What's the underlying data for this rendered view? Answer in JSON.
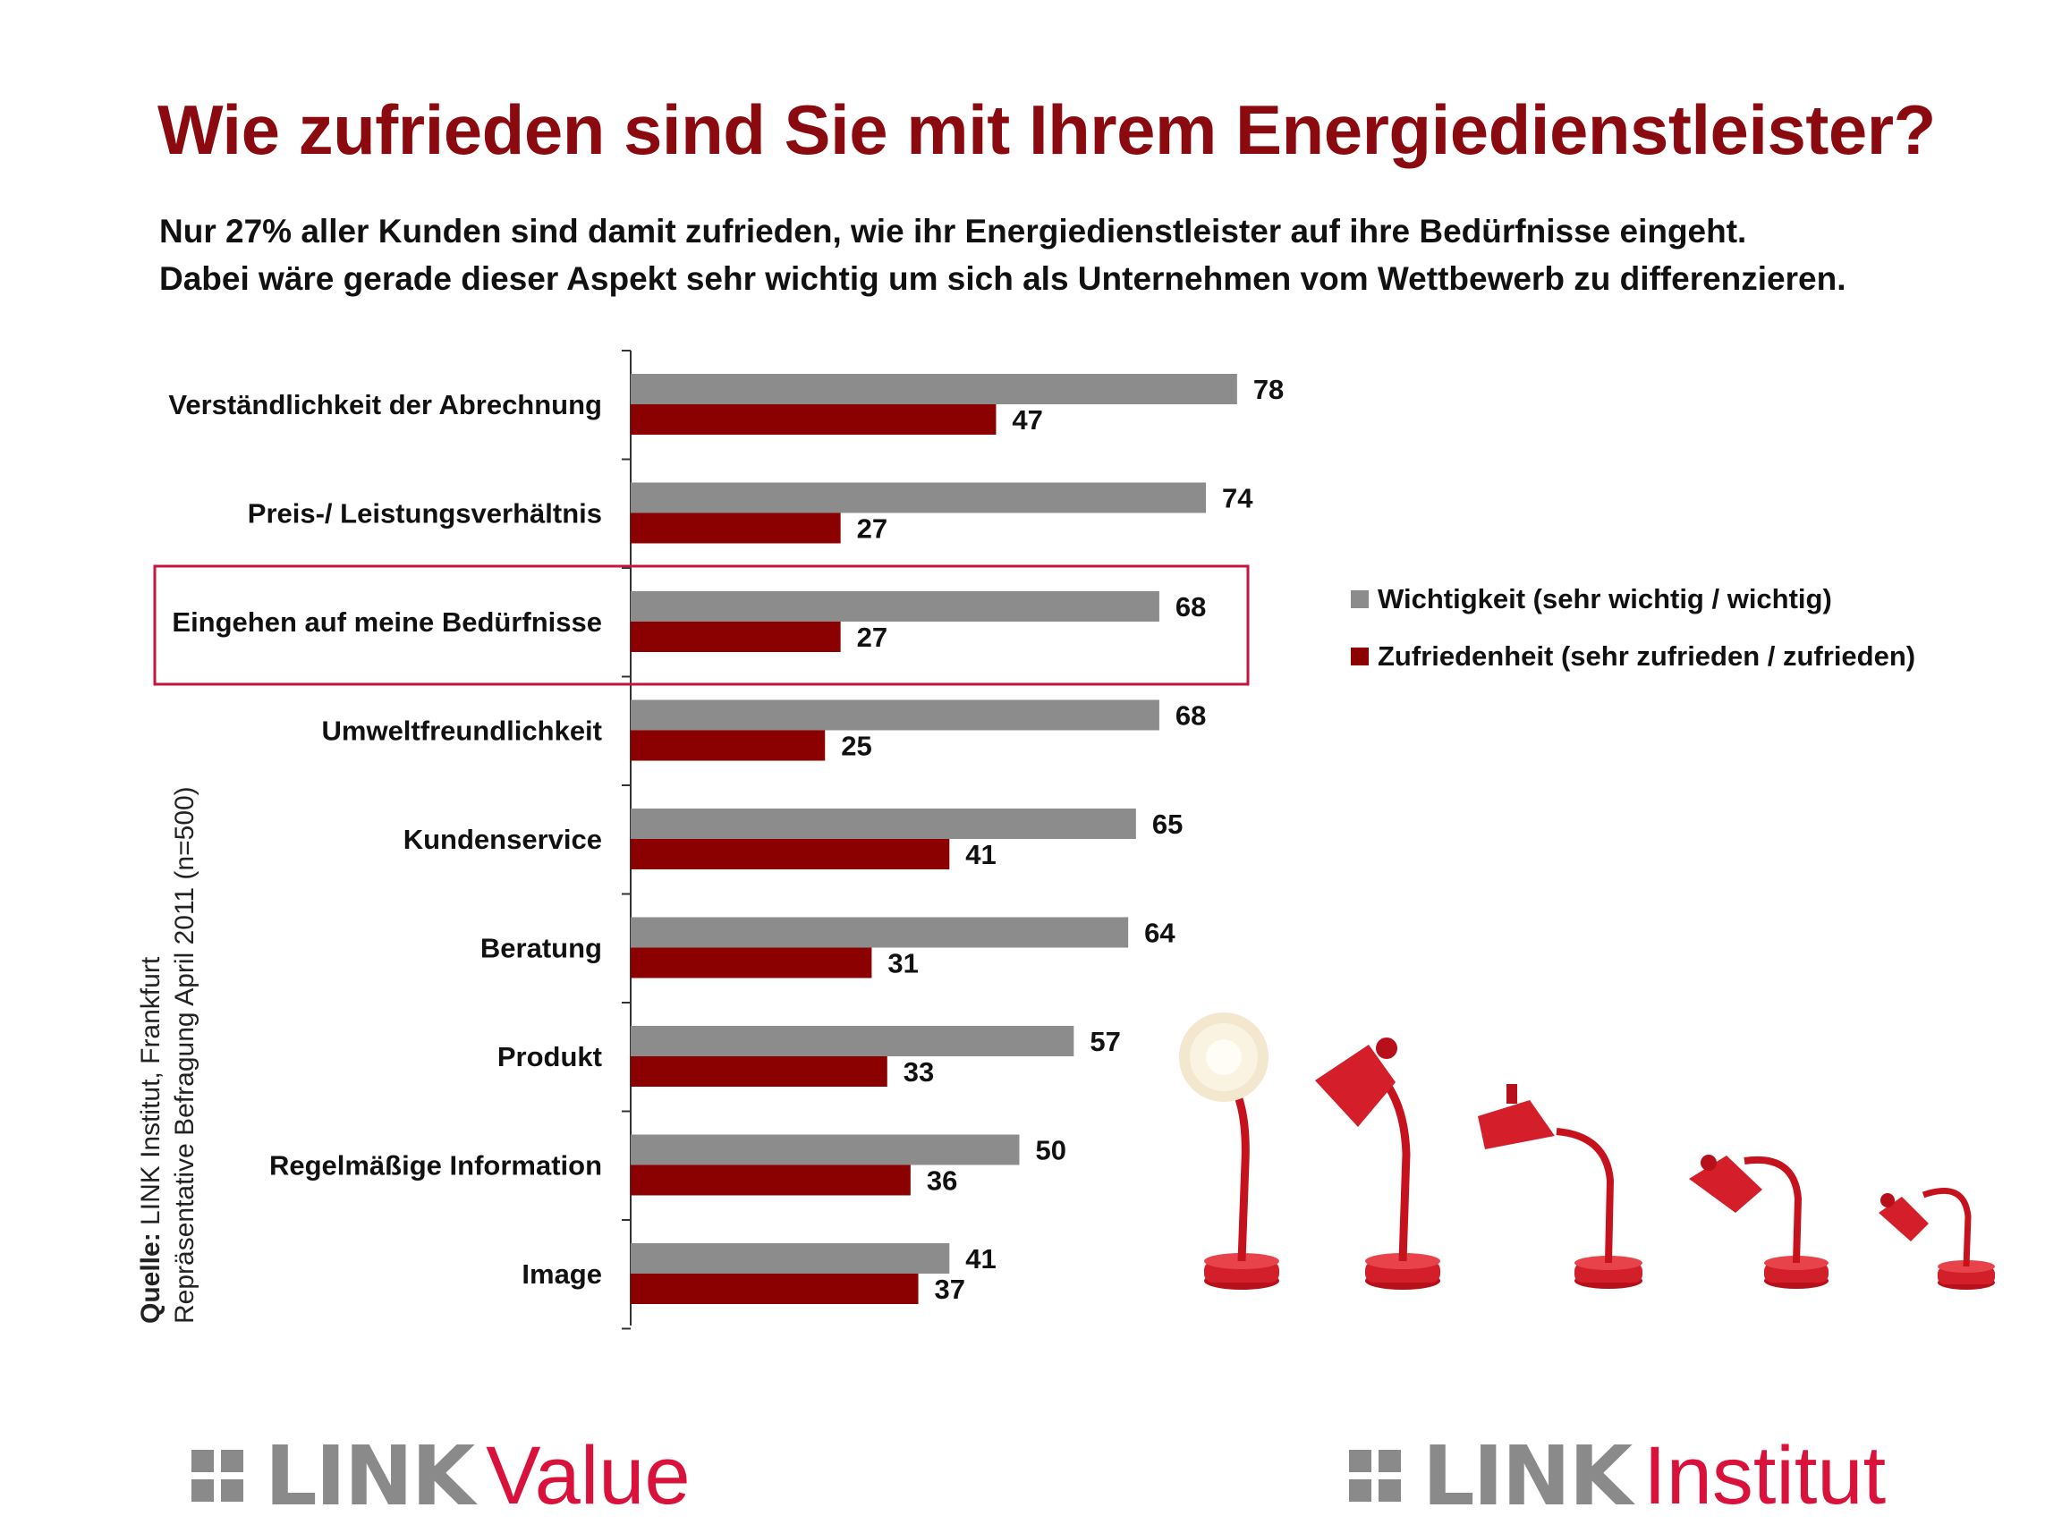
{
  "header": {
    "title": "Wie zufrieden sind Sie mit Ihrem Energiedienstleister?",
    "subtitle_line1": "Nur 27% aller Kunden sind damit zufrieden, wie ihr Energiedienstleister auf ihre Bedürfnisse eingeht.",
    "subtitle_line2": "Dabei wäre gerade dieser Aspekt sehr wichtig um sich als Unternehmen vom Wettbewerb zu differenzieren."
  },
  "source": {
    "label": "Quelle:",
    "line1": "LINK Institut, Frankfurt",
    "line2": "Repräsentative Befragung April 2011 (n=500)"
  },
  "logos": {
    "left_brand": "LINK",
    "left_product": "Value",
    "right_brand": "LINK",
    "right_product": "Institut"
  },
  "colors": {
    "title": "#8b0a0f",
    "importance": "#8c8c8c",
    "satisfaction": "#8b0000",
    "highlight_box": "#c8143c",
    "logo_grey": "#8a8a8a",
    "logo_red": "#d8123a"
  },
  "chart_data": {
    "type": "bar",
    "orientation": "horizontal",
    "categories": [
      "Verständlichkeit der Abrechnung",
      "Preis-/ Leistungsverhältnis",
      "Eingehen auf meine Bedürfnisse",
      "Umweltfreundlichkeit",
      "Kundenservice",
      "Beratung",
      "Produkt",
      "Regelmäßige Information",
      "Image"
    ],
    "series": [
      {
        "name": "Wichtigkeit (sehr wichtig / wichtig)",
        "color": "#8c8c8c",
        "values": [
          78,
          74,
          68,
          68,
          65,
          64,
          57,
          50,
          41
        ]
      },
      {
        "name": "Zufriedenheit (sehr zufrieden / zufrieden)",
        "color": "#8b0000",
        "values": [
          47,
          27,
          27,
          25,
          41,
          31,
          33,
          36,
          37
        ]
      }
    ],
    "highlighted_category": "Eingehen auf meine Bedürfnisse",
    "xlim": [
      0,
      100
    ],
    "data_labels": true,
    "legend_position": "right",
    "grid": false
  }
}
